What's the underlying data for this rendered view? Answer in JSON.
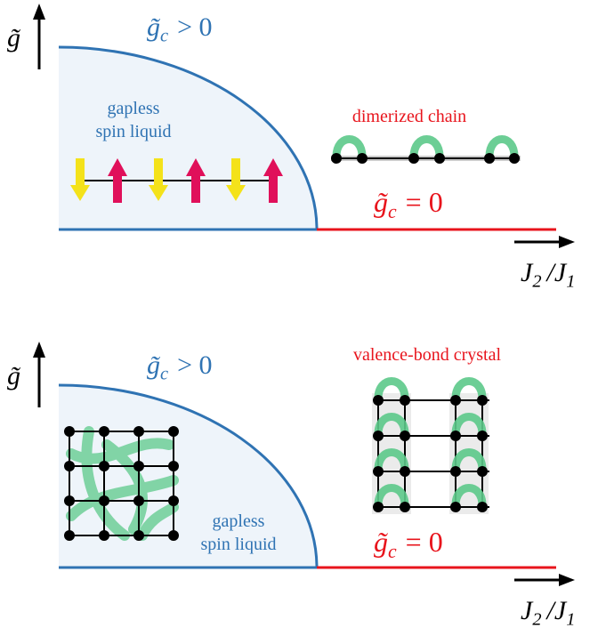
{
  "panels": [
    {
      "y_axis_label": "g̃",
      "positive_label": {
        "symbol": "g̃",
        "subscript": "c",
        "relation": "> 0"
      },
      "liquid_label": [
        "gapless",
        "spin liquid"
      ],
      "ordered_label": "dimerized chain",
      "zero_label": {
        "symbol": "g̃",
        "subscript": "c",
        "relation": "= 0"
      },
      "x_axis_label": {
        "numerator": "J",
        "numerator_sub": "2",
        "separator": "/",
        "denominator": "J",
        "denominator_sub": "1"
      }
    },
    {
      "y_axis_label": "g̃",
      "positive_label": {
        "symbol": "g̃",
        "subscript": "c",
        "relation": "> 0"
      },
      "liquid_label": [
        "gapless",
        "spin liquid"
      ],
      "ordered_label": "valence-bond crystal",
      "zero_label": {
        "symbol": "g̃",
        "subscript": "c",
        "relation": "= 0"
      },
      "x_axis_label": {
        "numerator": "J",
        "numerator_sub": "2",
        "separator": "/",
        "denominator": "J",
        "denominator_sub": "1"
      }
    }
  ]
}
